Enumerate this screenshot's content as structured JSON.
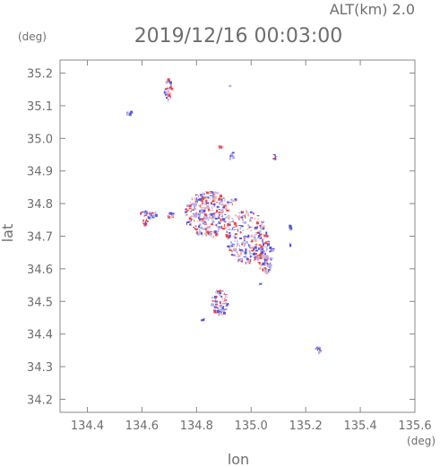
{
  "header": {
    "altitude": "ALT(km) 2.0",
    "timestamp": "2019/12/16 00:03:00"
  },
  "chart_data": {
    "type": "scatter",
    "title": "2019/12/16 00:03:00",
    "subtitle": "ALT(km) 2.0",
    "xlabel": "lon",
    "ylabel": "lat",
    "x_unit": "(deg)",
    "y_unit": "(deg)",
    "xlim": [
      134.3,
      135.6
    ],
    "ylim": [
      34.16,
      35.24
    ],
    "x_ticks": [
      134.4,
      134.6,
      134.8,
      135.0,
      135.2,
      135.4,
      135.6
    ],
    "x_tick_labels": [
      "134.4",
      "134.6",
      "134.8",
      "135.0",
      "135.2",
      "135.4",
      "135.6"
    ],
    "y_ticks": [
      34.2,
      34.3,
      34.4,
      34.5,
      34.6,
      34.7,
      34.8,
      34.9,
      35.0,
      35.1,
      35.2
    ],
    "y_tick_labels": [
      "34.2",
      "34.3",
      "34.4",
      "34.5",
      "34.6",
      "34.7",
      "34.8",
      "34.9",
      "35.0",
      "35.1",
      "35.2"
    ],
    "grid": false,
    "colors": {
      "positive": "#ee4444",
      "negative": "#5555dd",
      "weak_positive": "#f4b0b0",
      "weak_negative": "#b0b0ee"
    },
    "clusters": [
      {
        "lon": 134.55,
        "lat": 35.08,
        "r_lon": 0.012,
        "r_lat": 0.006,
        "n": 10,
        "seed": 1,
        "red": 0.0
      },
      {
        "lon": 134.695,
        "lat": 35.15,
        "r_lon": 0.015,
        "r_lat": 0.035,
        "n": 40,
        "seed": 2,
        "red": 0.45
      },
      {
        "lon": 134.92,
        "lat": 35.162,
        "r_lon": 0.003,
        "r_lat": 0.003,
        "n": 2,
        "seed": 3,
        "red": 0.0
      },
      {
        "lon": 134.885,
        "lat": 34.975,
        "r_lon": 0.01,
        "r_lat": 0.006,
        "n": 8,
        "seed": 4,
        "red": 0.6
      },
      {
        "lon": 134.925,
        "lat": 34.95,
        "r_lon": 0.008,
        "r_lat": 0.01,
        "n": 10,
        "seed": 5,
        "red": 0.2
      },
      {
        "lon": 135.08,
        "lat": 34.945,
        "r_lon": 0.008,
        "r_lat": 0.008,
        "n": 8,
        "seed": 6,
        "red": 0.4
      },
      {
        "lon": 134.62,
        "lat": 34.77,
        "r_lon": 0.03,
        "r_lat": 0.012,
        "n": 35,
        "seed": 7,
        "red": 0.35
      },
      {
        "lon": 134.61,
        "lat": 34.745,
        "r_lon": 0.01,
        "r_lat": 0.01,
        "n": 10,
        "seed": 8,
        "red": 0.8
      },
      {
        "lon": 134.7,
        "lat": 34.765,
        "r_lon": 0.015,
        "r_lat": 0.01,
        "n": 12,
        "seed": 9,
        "red": 0.6
      },
      {
        "lon": 134.84,
        "lat": 34.77,
        "r_lon": 0.085,
        "r_lat": 0.07,
        "n": 320,
        "seed": 10,
        "red": 0.45
      },
      {
        "lon": 134.98,
        "lat": 34.7,
        "r_lon": 0.075,
        "r_lat": 0.08,
        "n": 260,
        "seed": 11,
        "red": 0.4
      },
      {
        "lon": 135.05,
        "lat": 34.64,
        "r_lon": 0.03,
        "r_lat": 0.05,
        "n": 90,
        "seed": 12,
        "red": 0.3
      },
      {
        "lon": 134.93,
        "lat": 34.81,
        "r_lon": 0.01,
        "r_lat": 0.012,
        "n": 8,
        "seed": 13,
        "red": 0.5
      },
      {
        "lon": 135.14,
        "lat": 34.73,
        "r_lon": 0.003,
        "r_lat": 0.012,
        "n": 5,
        "seed": 14,
        "red": 0.0
      },
      {
        "lon": 135.14,
        "lat": 34.675,
        "r_lon": 0.003,
        "r_lat": 0.008,
        "n": 4,
        "seed": 15,
        "red": 0.0
      },
      {
        "lon": 134.88,
        "lat": 34.5,
        "r_lon": 0.03,
        "r_lat": 0.04,
        "n": 90,
        "seed": 16,
        "red": 0.35
      },
      {
        "lon": 134.82,
        "lat": 34.445,
        "r_lon": 0.006,
        "r_lat": 0.004,
        "n": 4,
        "seed": 17,
        "red": 0.0
      },
      {
        "lon": 135.245,
        "lat": 34.355,
        "r_lon": 0.012,
        "r_lat": 0.008,
        "n": 14,
        "seed": 18,
        "red": 0.5
      },
      {
        "lon": 135.03,
        "lat": 34.555,
        "r_lon": 0.003,
        "r_lat": 0.003,
        "n": 2,
        "seed": 19,
        "red": 0.0
      }
    ]
  }
}
